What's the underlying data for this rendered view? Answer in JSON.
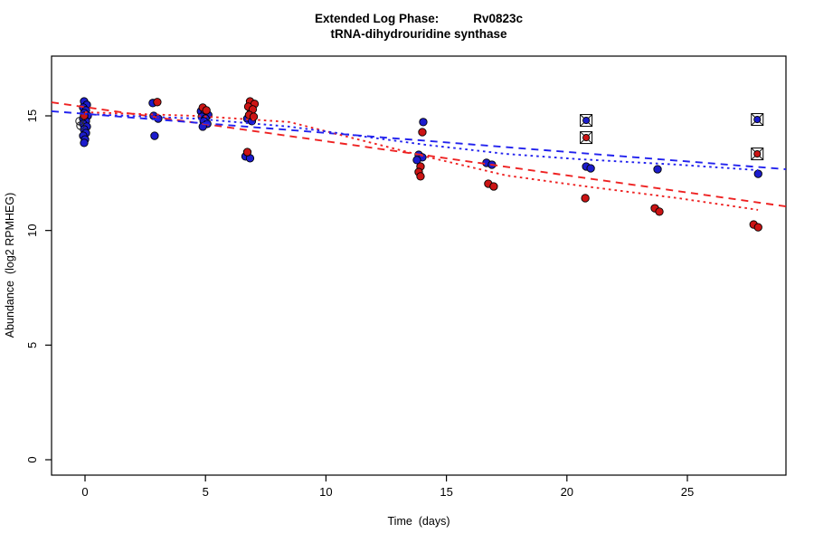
{
  "figure_title": {
    "line1_left": "Extended Log Phase:",
    "line1_right": "Rv0823c",
    "line2": "tRNA-dihydrouridine synthase"
  },
  "chart_data": {
    "type": "scatter",
    "title": "Extended Log Phase:  Rv0823c",
    "subtitle": "tRNA-dihydrouridine synthase",
    "xlabel": "Time  (days)",
    "ylabel": "Abundance  (log2 RPMHEG)",
    "x_ticks": [
      0,
      5,
      10,
      15,
      20,
      25
    ],
    "y_ticks": [
      0,
      5,
      10,
      15
    ],
    "xlim": [
      -1.4,
      29.1
    ],
    "ylim": [
      -0.7,
      17.6
    ],
    "grid": false,
    "legend": "none",
    "point_format": "[day, log2_abundance, x_jitter_px]",
    "series": [
      {
        "name": "blue",
        "color": "#1c1ccd",
        "points": [
          [
            0,
            15.63,
            -1
          ],
          [
            0,
            15.48,
            2
          ],
          [
            0,
            15.36,
            -2
          ],
          [
            0,
            15.24,
            1
          ],
          [
            0,
            15.12,
            -1
          ],
          [
            0,
            15.0,
            3
          ],
          [
            0,
            14.88,
            -2
          ],
          [
            0,
            14.77,
            1
          ],
          [
            0,
            14.65,
            -2
          ],
          [
            0,
            14.53,
            2
          ],
          [
            0,
            14.41,
            -1
          ],
          [
            0,
            14.25,
            1
          ],
          [
            0,
            14.13,
            -2
          ],
          [
            0,
            13.97,
            0
          ],
          [
            0,
            13.82,
            -1
          ],
          [
            3,
            15.56,
            -5
          ],
          [
            3,
            15.0,
            -4
          ],
          [
            3,
            14.88,
            1
          ],
          [
            3,
            14.13,
            -3
          ],
          [
            5,
            15.2,
            -5
          ],
          [
            5,
            15.12,
            -1
          ],
          [
            5,
            15.04,
            3
          ],
          [
            5,
            14.96,
            -4
          ],
          [
            5,
            14.88,
            0
          ],
          [
            5,
            14.77,
            -2
          ],
          [
            5,
            14.65,
            2
          ],
          [
            5,
            14.53,
            -3
          ],
          [
            7,
            15.16,
            -3
          ],
          [
            7,
            14.88,
            -7
          ],
          [
            7,
            14.77,
            -2
          ],
          [
            7,
            13.23,
            -9
          ],
          [
            7,
            13.15,
            -4
          ],
          [
            14,
            14.73,
            1
          ],
          [
            14,
            13.3,
            -4
          ],
          [
            14,
            13.19,
            0
          ],
          [
            14,
            13.07,
            -6
          ],
          [
            16.7,
            12.95,
            -1
          ],
          [
            16.7,
            12.87,
            5
          ],
          [
            20.8,
            12.79,
            0
          ],
          [
            20.8,
            12.71,
            5
          ],
          [
            23.8,
            12.67,
            -1
          ],
          [
            27.9,
            12.47,
            1
          ]
        ]
      },
      {
        "name": "red",
        "color": "#cc1414",
        "points": [
          [
            0,
            15.0,
            -1
          ],
          [
            3,
            15.6,
            0
          ],
          [
            5,
            15.36,
            -3
          ],
          [
            5,
            15.24,
            1
          ],
          [
            7,
            15.63,
            -4
          ],
          [
            7,
            15.52,
            1
          ],
          [
            7,
            15.4,
            -6
          ],
          [
            7,
            15.28,
            -1
          ],
          [
            7,
            15.04,
            -5
          ],
          [
            7,
            14.96,
            0
          ],
          [
            7,
            13.42,
            -7
          ],
          [
            14,
            14.29,
            0
          ],
          [
            14,
            12.79,
            -2
          ],
          [
            14,
            12.55,
            -4
          ],
          [
            14,
            12.36,
            -2
          ],
          [
            16.7,
            12.04,
            1
          ],
          [
            16.7,
            11.92,
            7
          ],
          [
            20.8,
            11.41,
            -1
          ],
          [
            23.8,
            10.97,
            -4
          ],
          [
            23.8,
            10.82,
            1
          ],
          [
            27.9,
            10.26,
            -4
          ],
          [
            27.9,
            10.14,
            1
          ]
        ]
      }
    ],
    "flagged_points": [
      {
        "series": "blue",
        "day": 20.8,
        "value": 14.8
      },
      {
        "series": "red",
        "day": 20.8,
        "value": 14.05
      },
      {
        "series": "blue",
        "day": 27.9,
        "value": 14.84
      },
      {
        "series": "red",
        "day": 27.9,
        "value": 13.34
      }
    ],
    "open_points": [
      {
        "day": 0,
        "value": 14.77,
        "jitter": -6
      },
      {
        "day": 0,
        "value": 14.57,
        "jitter": -5
      }
    ],
    "trend_lines": [
      {
        "name": "red-dashed-fit",
        "color": "#ee2222",
        "style": "dashed",
        "points": [
          [
            -1.39,
            15.59
          ],
          [
            29.09,
            11.05
          ]
        ]
      },
      {
        "name": "blue-dashed-fit",
        "color": "#2222ee",
        "style": "dashed",
        "points": [
          [
            -1.39,
            15.2
          ],
          [
            29.09,
            12.67
          ]
        ]
      },
      {
        "name": "red-dotted-fit",
        "color": "#ee2222",
        "style": "dotted",
        "points": [
          [
            0,
            15.16
          ],
          [
            4.54,
            15.0
          ],
          [
            8.48,
            14.73
          ],
          [
            14.11,
            13.23
          ],
          [
            17.49,
            12.4
          ],
          [
            20.5,
            11.96
          ],
          [
            24.62,
            11.41
          ],
          [
            27.93,
            10.9
          ]
        ]
      },
      {
        "name": "blue-dotted-fit",
        "color": "#2222ee",
        "style": "dotted",
        "points": [
          [
            0,
            15.08
          ],
          [
            4.54,
            14.88
          ],
          [
            8.48,
            14.53
          ],
          [
            14.11,
            13.74
          ],
          [
            17.49,
            13.34
          ],
          [
            20.5,
            13.11
          ],
          [
            24.62,
            12.87
          ],
          [
            27.93,
            12.63
          ]
        ]
      }
    ]
  }
}
